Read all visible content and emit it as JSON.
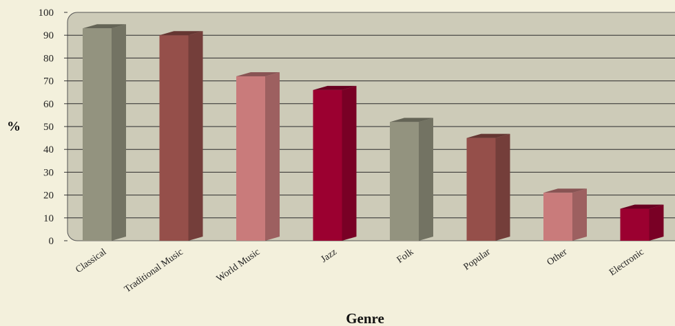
{
  "chart_data": {
    "type": "bar",
    "title": "",
    "xlabel": "Genre",
    "ylabel": "%",
    "ylim": [
      0,
      100
    ],
    "yticks": [
      0,
      10,
      20,
      30,
      40,
      50,
      60,
      70,
      80,
      90,
      100
    ],
    "grid": true,
    "legend": "none",
    "categories": [
      "Classical",
      "Traditional Music",
      "World Music",
      "Jazz",
      "Folk",
      "Popular",
      "Other",
      "Electronic"
    ],
    "values": [
      93,
      90,
      72,
      66,
      52,
      45,
      21,
      14
    ],
    "colors": [
      "#93937f",
      "#954f4a",
      "#c97b7b",
      "#9b0030",
      "#93937f",
      "#954f4a",
      "#c97b7b",
      "#9b0030"
    ],
    "plot_background": "#cdcbb8",
    "page_background": "#f3f0dc"
  }
}
